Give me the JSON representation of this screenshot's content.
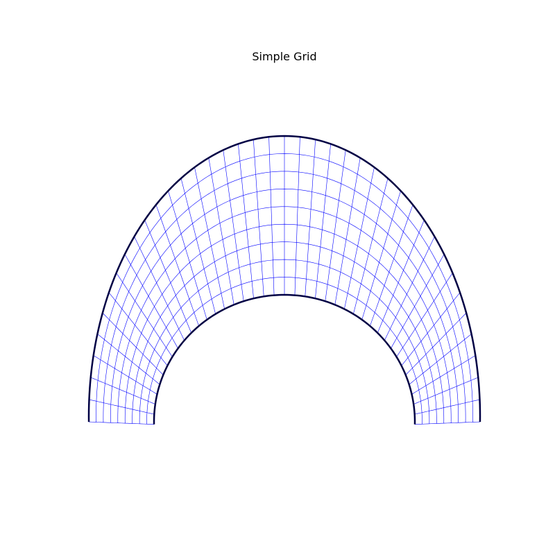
{
  "figure": {
    "title": "Simple Grid"
  },
  "grid": {
    "description_shape": "half-annulus structured mesh",
    "radial_divisions": 9,
    "angular_divisions": 40,
    "colors": {
      "mesh_line": "#0000ff",
      "boundary": "#000044",
      "background": "#ffffff"
    }
  }
}
